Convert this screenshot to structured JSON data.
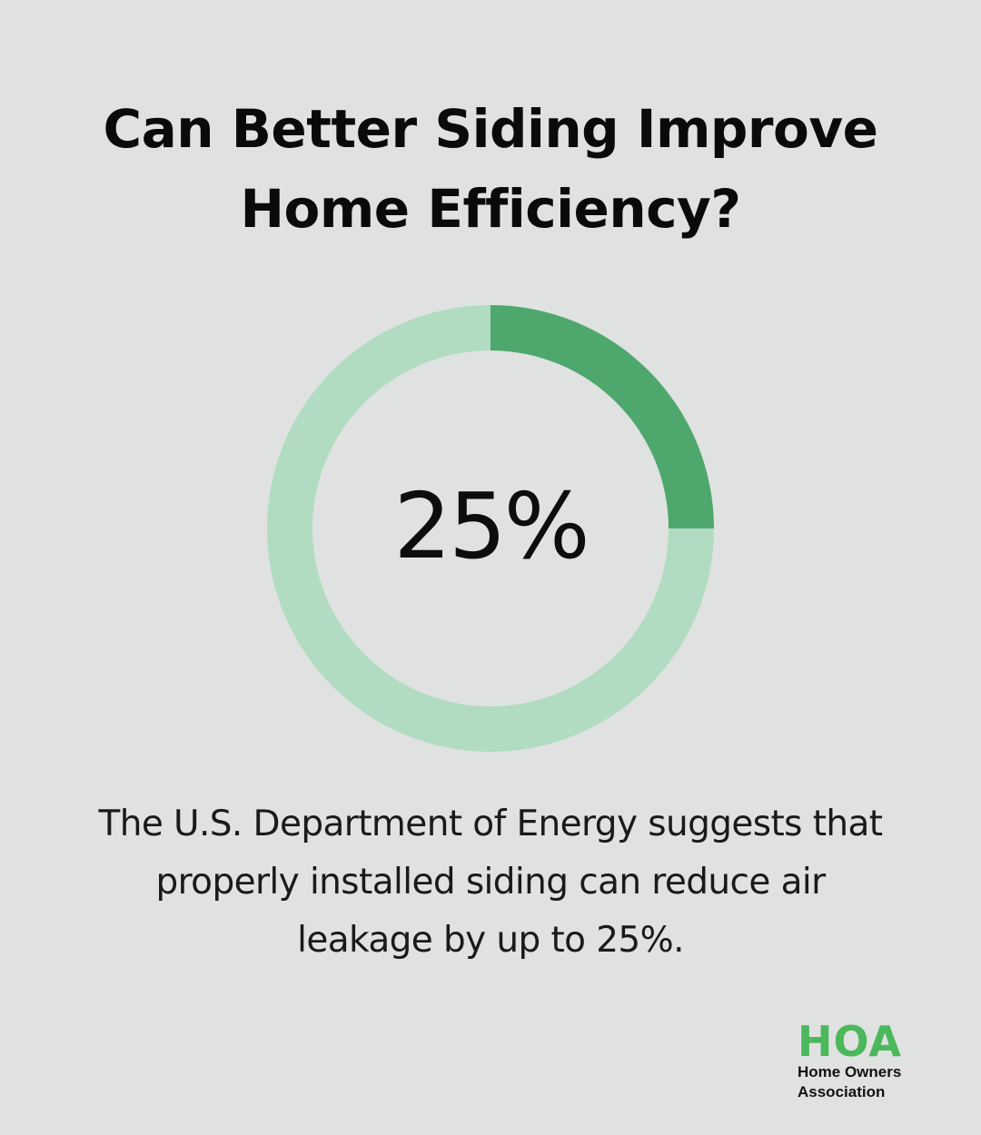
{
  "title": {
    "line1": "Can Better Siding Improve",
    "line2": "Home Efficiency?"
  },
  "chart_data": {
    "type": "pie",
    "variant": "donut",
    "values": [
      25,
      75
    ],
    "center_label": "25%",
    "colors": {
      "highlight": "#4ea86d",
      "remainder": "#b1dcc1"
    }
  },
  "caption": {
    "line1": "The U.S. Department of Energy suggests that",
    "line2": "properly installed siding can reduce air",
    "line3": "leakage by up to 25%."
  },
  "logo": {
    "mark": "HOA",
    "line1": "Home Owners",
    "line2": "Association",
    "color": "#4cb85c"
  },
  "colors": {
    "background": "#e0e2e1",
    "text": "#0d0d0d"
  }
}
